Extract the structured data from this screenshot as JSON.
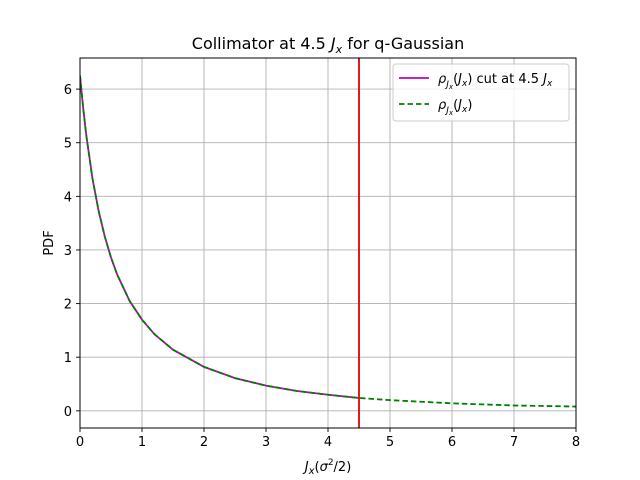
{
  "chart_data": {
    "type": "line",
    "title_prefix": "Collimator at 4.5",
    "title_var": "J",
    "title_sub": "x",
    "title_suffix": "for q-Gaussian",
    "xlabel_main": "J",
    "xlabel_sub": "x",
    "xlabel_paren_open": "(",
    "xlabel_sigma": "σ",
    "xlabel_sup": "2",
    "xlabel_div": "/2)",
    "ylabel": "PDF",
    "xlim": [
      0,
      8
    ],
    "ylim": [
      -0.32,
      6.58
    ],
    "xticks": [
      0,
      1,
      2,
      3,
      4,
      5,
      6,
      7,
      8
    ],
    "yticks": [
      0,
      1,
      2,
      3,
      4,
      5,
      6
    ],
    "grid": true,
    "legend_position": "top-right",
    "cut_at": 4.5,
    "colors": {
      "cut_series": "#bf00bf",
      "full_series": "#008000",
      "cut_line": "#e00000"
    },
    "series": [
      {
        "name": "rho_Jx(Jx) cut at 4.5 Jx",
        "legend": {
          "rho": "ρ",
          "sub": "J",
          "subsub": "x",
          "arg_open": "(",
          "arg": "J",
          "arg_sub": "x",
          "arg_close": ")",
          "suffix": " cut at 4.5 ",
          "suffix_var": "J",
          "suffix_sub": "x"
        },
        "style": "solid",
        "x": [
          0,
          0.05,
          0.1,
          0.2,
          0.3,
          0.4,
          0.5,
          0.6,
          0.8,
          1.0,
          1.2,
          1.5,
          2.0,
          2.5,
          3.0,
          3.5,
          4.0,
          4.5
        ],
        "y": [
          6.25,
          5.66,
          5.15,
          4.34,
          3.73,
          3.25,
          2.86,
          2.54,
          2.05,
          1.7,
          1.43,
          1.14,
          0.82,
          0.61,
          0.47,
          0.37,
          0.3,
          0.24
        ]
      },
      {
        "name": "rho_Jx(Jx)",
        "legend": {
          "rho": "ρ",
          "sub": "J",
          "subsub": "x",
          "arg_open": "(",
          "arg": "J",
          "arg_sub": "x",
          "arg_close": ")"
        },
        "style": "dashed",
        "x": [
          0,
          0.05,
          0.1,
          0.2,
          0.3,
          0.4,
          0.5,
          0.6,
          0.8,
          1.0,
          1.2,
          1.5,
          2.0,
          2.5,
          3.0,
          3.5,
          4.0,
          4.5,
          5.0,
          5.5,
          6.0,
          6.5,
          7.0,
          7.5,
          8.0
        ],
        "y": [
          6.25,
          5.66,
          5.15,
          4.34,
          3.73,
          3.25,
          2.86,
          2.54,
          2.05,
          1.7,
          1.43,
          1.14,
          0.82,
          0.61,
          0.47,
          0.37,
          0.3,
          0.24,
          0.2,
          0.17,
          0.14,
          0.12,
          0.1,
          0.09,
          0.08
        ]
      }
    ]
  }
}
